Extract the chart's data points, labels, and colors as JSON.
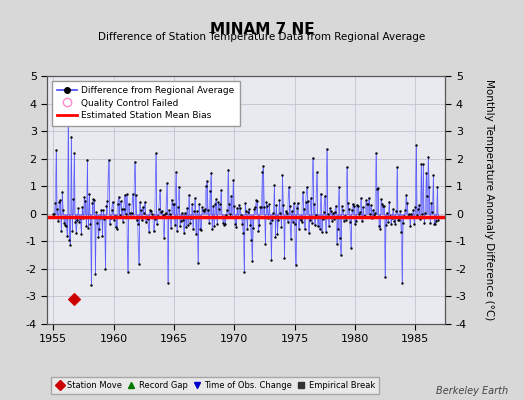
{
  "title": "MINAM 7 NE",
  "subtitle": "Difference of Station Temperature Data from Regional Average",
  "ylabel": "Monthly Temperature Anomaly Difference (°C)",
  "xlabel_years": [
    1955,
    1960,
    1965,
    1970,
    1975,
    1980,
    1985
  ],
  "ylim": [
    -4,
    5
  ],
  "xlim": [
    1954.5,
    1987.5
  ],
  "bias_level": -0.1,
  "station_move_year": 1956.75,
  "station_move_value": -3.1,
  "background_color": "#d8d8d8",
  "plot_bg_color": "#e8eaf0",
  "line_color": "#4444ff",
  "marker_color": "#000000",
  "bias_color": "#ff0000",
  "station_move_color": "#cc0000",
  "tobs_color": "#0000cc",
  "record_gap_color": "#007700",
  "empirical_break_color": "#000000",
  "watermark": "Berkeley Earth",
  "seed": 42
}
